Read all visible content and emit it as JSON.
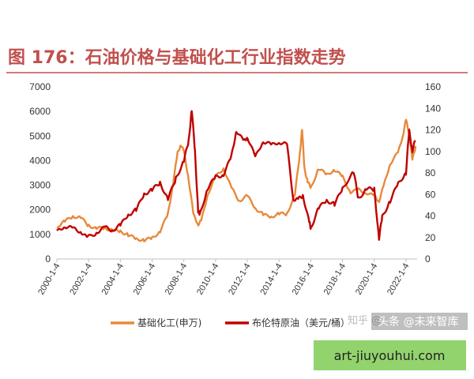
{
  "figure": {
    "title": "图 176：石油价格与基础化工行业指数走势",
    "title_color": "#c0504d",
    "rule_color": "#c0504d"
  },
  "watermarks": {
    "zhihu": "知乎 @",
    "toutiao": "头条 @未来智库",
    "site": "art-jiuyouhui.com",
    "site_bg": "#92d36e"
  },
  "chart_data": {
    "type": "line",
    "title": "图 176：石油价格与基础化工行业指数走势",
    "x_tick_labels": [
      "2000-1-4",
      "2002-1-4",
      "2004-1-4",
      "2006-1-4",
      "2008-1-4",
      "2010-1-4",
      "2012-1-4",
      "2014-1-4",
      "2016-1-4",
      "2018-1-4",
      "2020-1-4",
      "2022-1-4"
    ],
    "x_range": [
      2000.0,
      2022.7
    ],
    "y_left": {
      "ticks": [
        0,
        1000,
        2000,
        3000,
        4000,
        5000,
        6000,
        7000
      ],
      "ylim": [
        0,
        7000
      ]
    },
    "y_right": {
      "ticks": [
        0,
        20,
        40,
        60,
        80,
        100,
        120,
        140,
        160
      ],
      "ylim": [
        0,
        160
      ]
    },
    "legend_position": "bottom",
    "grid": false,
    "series": [
      {
        "name": "基础化工(申万)",
        "axis": "left",
        "color": "#e8893a",
        "x": [
          2000.0,
          2000.5,
          2001.0,
          2001.5,
          2002.0,
          2002.5,
          2003.0,
          2003.5,
          2004.0,
          2004.5,
          2005.0,
          2005.5,
          2006.0,
          2006.5,
          2007.0,
          2007.3,
          2007.6,
          2007.8,
          2008.0,
          2008.3,
          2008.6,
          2008.9,
          2009.1,
          2009.5,
          2010.0,
          2010.5,
          2011.0,
          2011.5,
          2012.0,
          2012.5,
          2013.0,
          2013.5,
          2014.0,
          2014.5,
          2015.0,
          2015.3,
          2015.45,
          2015.6,
          2015.8,
          2016.0,
          2016.5,
          2017.0,
          2017.5,
          2018.0,
          2018.5,
          2019.0,
          2019.5,
          2020.0,
          2020.3,
          2020.6,
          2021.0,
          2021.5,
          2021.8,
          2022.0,
          2022.2,
          2022.4,
          2022.6
        ],
        "y": [
          1300,
          1500,
          1700,
          1650,
          1350,
          1250,
          1300,
          1200,
          1150,
          1000,
          800,
          750,
          800,
          1100,
          1800,
          3000,
          4300,
          4700,
          4400,
          3300,
          1800,
          1400,
          1500,
          2600,
          3300,
          3700,
          2900,
          2400,
          2600,
          2100,
          1800,
          1700,
          1800,
          1800,
          2600,
          4200,
          5300,
          3700,
          3200,
          2900,
          3700,
          3400,
          3600,
          3300,
          2700,
          2800,
          2700,
          2600,
          2400,
          3000,
          3900,
          4300,
          5000,
          5600,
          5100,
          4000,
          4600
        ]
      },
      {
        "name": "布伦特原油（美元/桶）",
        "axis": "right",
        "color": "#c00000",
        "x": [
          2000.0,
          2000.5,
          2001.0,
          2001.5,
          2001.9,
          2002.5,
          2003.0,
          2003.5,
          2004.0,
          2004.5,
          2005.0,
          2005.5,
          2006.0,
          2006.5,
          2007.0,
          2007.5,
          2008.0,
          2008.3,
          2008.5,
          2008.7,
          2008.9,
          2009.0,
          2009.5,
          2010.0,
          2010.5,
          2011.0,
          2011.3,
          2011.8,
          2012.0,
          2012.5,
          2013.0,
          2013.5,
          2014.0,
          2014.5,
          2014.9,
          2015.2,
          2015.5,
          2015.9,
          2016.0,
          2016.5,
          2017.0,
          2017.5,
          2018.0,
          2018.7,
          2019.0,
          2019.5,
          2020.0,
          2020.3,
          2020.5,
          2021.0,
          2021.5,
          2022.0,
          2022.2,
          2022.4,
          2022.6
        ],
        "y": [
          25,
          30,
          27,
          25,
          19,
          25,
          30,
          28,
          32,
          42,
          45,
          60,
          63,
          70,
          55,
          75,
          92,
          110,
          140,
          100,
          45,
          40,
          65,
          75,
          78,
          95,
          120,
          110,
          115,
          95,
          110,
          105,
          108,
          105,
          55,
          55,
          60,
          35,
          30,
          48,
          55,
          50,
          65,
          80,
          55,
          65,
          65,
          20,
          40,
          55,
          70,
          80,
          118,
          100,
          110
        ]
      }
    ]
  }
}
